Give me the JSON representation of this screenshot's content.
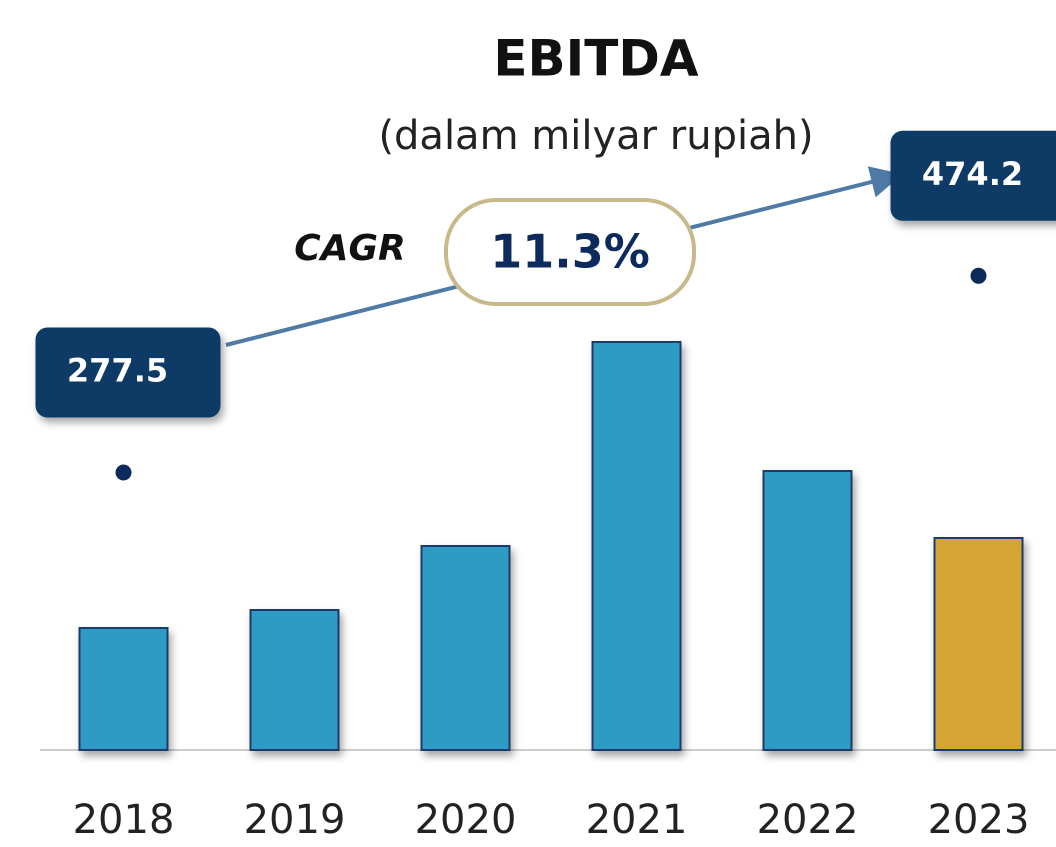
{
  "chart_data": {
    "type": "bar",
    "title": "EBITDA",
    "subtitle": "(dalam milyar rupiah)",
    "categories": [
      "2018",
      "2019",
      "2020",
      "2021",
      "2022",
      "2023"
    ],
    "series": [
      {
        "values": [
          122,
          140,
          204,
          408,
          279,
          212
        ],
        "colors": [
          "#2f9bc4",
          "#2f9bc4",
          "#2f9bc4",
          "#2f9bc4",
          "#2f9bc4",
          "#d4a535"
        ]
      },
      {
        "values": [
          277.5,
          null,
          null,
          null,
          null,
          474.2
        ],
        "color": "#0d2a5c"
      }
    ],
    "ylim": [
      0,
      500
    ],
    "annotations": {
      "cagr_label": "CAGR",
      "cagr_value": "11.3%"
    }
  }
}
